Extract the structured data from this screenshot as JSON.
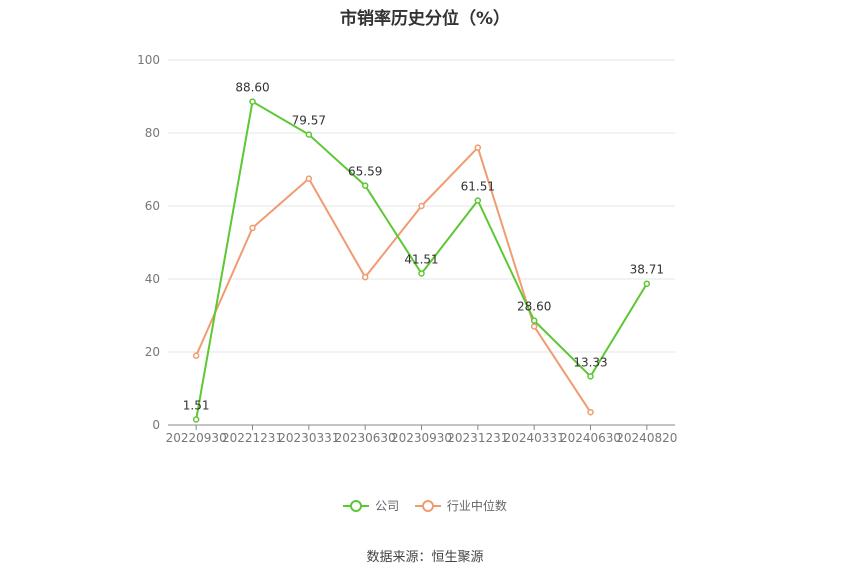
{
  "title": "市销率历史分位（%）",
  "source": "数据来源：恒生聚源",
  "chart_data": {
    "type": "line",
    "title": "市销率历史分位（%）",
    "categories": [
      "20220930",
      "20221231",
      "20230331",
      "20230630",
      "20230930",
      "20231231",
      "20240331",
      "20240630",
      "20240820"
    ],
    "ylim": [
      0,
      100
    ],
    "yticks": [
      0,
      20,
      40,
      60,
      80,
      100
    ],
    "grid": true,
    "legend": "bottom",
    "series": [
      {
        "name": "公司",
        "color": "#5ec734",
        "values": [
          1.51,
          88.6,
          79.57,
          65.59,
          41.51,
          61.51,
          28.6,
          13.33,
          38.71
        ],
        "labels": [
          "1.51",
          "88.60",
          "79.57",
          "65.59",
          "41.51",
          "61.51",
          "28.60",
          "13.33",
          "38.71"
        ]
      },
      {
        "name": "行业中位数",
        "color": "#f19b72",
        "values": [
          19,
          54,
          67.5,
          40.5,
          60,
          76,
          27,
          3.5,
          null
        ]
      }
    ]
  }
}
